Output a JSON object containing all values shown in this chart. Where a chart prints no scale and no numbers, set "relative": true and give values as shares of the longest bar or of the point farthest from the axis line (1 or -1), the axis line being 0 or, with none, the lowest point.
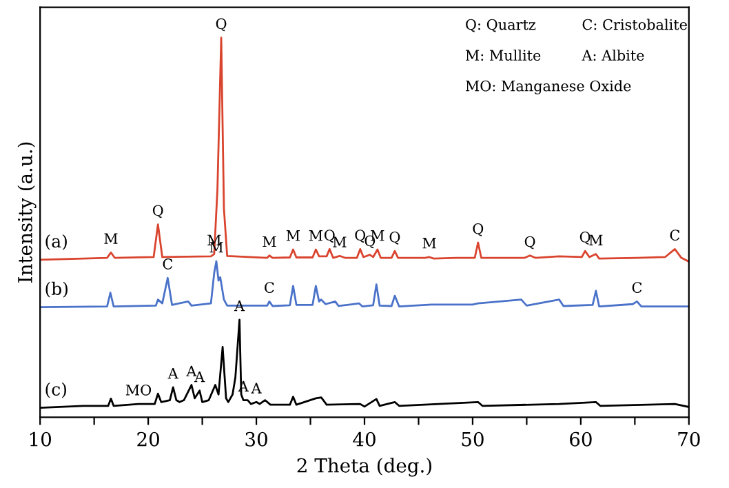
{
  "chart_data": {
    "type": "line",
    "relative": true,
    "xlabel": "2 Theta (deg.)",
    "ylabel": "Intensity (a.u.)",
    "xlim": [
      10,
      70
    ],
    "xticks": [
      10,
      {
        "value": 15,
        "label": null
      },
      20,
      {
        "value": 25,
        "label": null
      },
      30,
      {
        "value": 35,
        "label": null
      },
      40,
      {
        "value": 45,
        "label": null
      },
      50,
      {
        "value": 55,
        "label": null
      },
      60,
      {
        "value": 65,
        "label": null
      },
      70
    ],
    "tick_labels": "x",
    "grid": false,
    "marker": "none",
    "line_style": "solid",
    "series": [
      {
        "name": "(a)",
        "color": "#d9442e",
        "x": [
          10,
          14,
          16.2,
          16.55,
          16.9,
          20.5,
          20.9,
          21.3,
          25.8,
          26.1,
          26.4,
          26.75,
          27.0,
          27.3,
          31.0,
          31.2,
          31.5,
          33.1,
          33.4,
          33.7,
          35.2,
          35.5,
          35.8,
          36.5,
          36.77,
          37.1,
          37.7,
          38.2,
          39.3,
          39.6,
          39.9,
          40.5,
          40.8,
          41.2,
          41.5,
          42.5,
          42.8,
          43.1,
          45.6,
          46.0,
          46.4,
          48.5,
          50.2,
          50.5,
          50.8,
          54.8,
          55.3,
          55.8,
          58.0,
          60.1,
          60.4,
          60.8,
          61.4,
          61.7,
          65.2,
          67.8,
          68.7,
          69.3,
          70
        ],
        "values": [
          0.415,
          0.418,
          0.42,
          0.434,
          0.42,
          0.422,
          0.508,
          0.422,
          0.424,
          0.43,
          0.6,
          1.0,
          0.55,
          0.425,
          0.42,
          0.426,
          0.42,
          0.421,
          0.442,
          0.421,
          0.421,
          0.442,
          0.424,
          0.424,
          0.443,
          0.42,
          0.425,
          0.42,
          0.42,
          0.443,
          0.422,
          0.428,
          0.422,
          0.442,
          0.42,
          0.42,
          0.438,
          0.42,
          0.42,
          0.422,
          0.418,
          0.42,
          0.42,
          0.46,
          0.42,
          0.42,
          0.426,
          0.42,
          0.424,
          0.422,
          0.438,
          0.422,
          0.43,
          0.418,
          0.42,
          0.422,
          0.443,
          0.42,
          0.41
        ]
      },
      {
        "name": "(b)",
        "color": "#4a72c9",
        "x": [
          10,
          16.2,
          16.5,
          16.8,
          20.7,
          20.9,
          21.3,
          21.8,
          22.2,
          23.7,
          24.0,
          25.8,
          26.1,
          26.3,
          26.5,
          26.66,
          27.0,
          27.3,
          31.0,
          31.2,
          31.5,
          33.1,
          33.4,
          33.7,
          35.2,
          35.5,
          35.8,
          36.0,
          36.4,
          37.3,
          37.6,
          39.5,
          39.8,
          40.8,
          41.1,
          41.4,
          42.5,
          42.8,
          43.2,
          46.2,
          50.0,
          50.5,
          54.5,
          55.0,
          58.0,
          58.4,
          61.1,
          61.4,
          61.7,
          64.8,
          65.2,
          65.6,
          70
        ],
        "values": [
          0.29,
          0.292,
          0.328,
          0.292,
          0.294,
          0.31,
          0.3,
          0.367,
          0.296,
          0.305,
          0.294,
          0.3,
          0.38,
          0.411,
          0.36,
          0.369,
          0.31,
          0.294,
          0.294,
          0.305,
          0.293,
          0.295,
          0.346,
          0.296,
          0.296,
          0.346,
          0.305,
          0.31,
          0.298,
          0.305,
          0.293,
          0.3,
          0.292,
          0.295,
          0.35,
          0.294,
          0.293,
          0.32,
          0.292,
          0.297,
          0.297,
          0.3,
          0.31,
          0.294,
          0.31,
          0.293,
          0.296,
          0.333,
          0.292,
          0.298,
          0.305,
          0.292,
          0.292
        ]
      },
      {
        "name": "(c)",
        "color": "#000000",
        "x": [
          10,
          14,
          16.3,
          16.55,
          16.8,
          19.1,
          20.6,
          20.9,
          21.2,
          22.0,
          22.3,
          22.6,
          22.9,
          23.3,
          24.0,
          24.3,
          24.75,
          25.0,
          25.6,
          26.2,
          26.5,
          26.88,
          27.2,
          27.4,
          27.8,
          28.06,
          28.44,
          28.6,
          28.8,
          29.2,
          29.5,
          30.0,
          30.3,
          30.8,
          31.3,
          33.1,
          33.4,
          33.7,
          35.5,
          36.0,
          36.5,
          39.6,
          40.0,
          41.1,
          41.4,
          42.8,
          43.2,
          50.5,
          50.9,
          58.0,
          61.4,
          61.8,
          68.7,
          70
        ],
        "values": [
          0.025,
          0.03,
          0.03,
          0.049,
          0.03,
          0.035,
          0.035,
          0.062,
          0.04,
          0.045,
          0.079,
          0.045,
          0.04,
          0.045,
          0.085,
          0.05,
          0.07,
          0.04,
          0.045,
          0.085,
          0.06,
          0.185,
          0.05,
          0.04,
          0.06,
          0.105,
          0.257,
          0.06,
          0.045,
          0.045,
          0.035,
          0.04,
          0.035,
          0.045,
          0.033,
          0.033,
          0.054,
          0.033,
          0.05,
          0.052,
          0.033,
          0.035,
          0.028,
          0.048,
          0.03,
          0.04,
          0.03,
          0.04,
          0.03,
          0.035,
          0.04,
          0.03,
          0.035,
          0.027
        ]
      }
    ],
    "annotations": [
      "Q: Quartz",
      "C: Cristobalite",
      "M: Mullite",
      "A: Albite",
      "MO: Manganese Oxide",
      {
        "text": "Q",
        "x": 26.75,
        "y": 1.0
      },
      {
        "text": "M",
        "x": 16.55,
        "y": 0.434
      },
      {
        "text": "Q",
        "x": 20.9,
        "y": 0.508
      },
      {
        "text": "M",
        "x": 26.1,
        "y": 0.43
      },
      {
        "text": "M",
        "x": 31.2,
        "y": 0.426
      },
      {
        "text": "M",
        "x": 33.4,
        "y": 0.442
      },
      {
        "text": "M",
        "x": 35.5,
        "y": 0.442
      },
      {
        "text": "Q",
        "x": 36.77,
        "y": 0.443
      },
      {
        "text": "M",
        "x": 37.7,
        "y": 0.425
      },
      {
        "text": "Q",
        "x": 39.6,
        "y": 0.443
      },
      {
        "text": "Q",
        "x": 40.5,
        "y": 0.428
      },
      {
        "text": "M",
        "x": 41.2,
        "y": 0.442
      },
      {
        "text": "Q",
        "x": 42.8,
        "y": 0.438
      },
      {
        "text": "M",
        "x": 46.0,
        "y": 0.422
      },
      {
        "text": "Q",
        "x": 50.5,
        "y": 0.46
      },
      {
        "text": "Q",
        "x": 55.3,
        "y": 0.426
      },
      {
        "text": "Q",
        "x": 60.4,
        "y": 0.438
      },
      {
        "text": "M",
        "x": 61.4,
        "y": 0.43
      },
      {
        "text": "C",
        "x": 68.7,
        "y": 0.443
      },
      {
        "text": "C",
        "x": 21.8,
        "y": 0.367
      },
      {
        "text": "M",
        "x": 26.3,
        "y": 0.411
      },
      {
        "text": "C",
        "x": 31.2,
        "y": 0.305
      },
      {
        "text": "C",
        "x": 65.2,
        "y": 0.305
      },
      {
        "text": "A",
        "x": 28.44,
        "y": 0.257
      },
      {
        "text": "MO",
        "x": 19.1,
        "y": 0.035
      },
      {
        "text": "A",
        "x": 22.3,
        "y": 0.079
      },
      {
        "text": "A",
        "x": 24.0,
        "y": 0.085
      },
      {
        "text": "A",
        "x": 24.75,
        "y": 0.07
      },
      {
        "text": "A",
        "x": 28.8,
        "y": 0.045
      },
      {
        "text": "A",
        "x": 30.0,
        "y": 0.04
      }
    ]
  }
}
